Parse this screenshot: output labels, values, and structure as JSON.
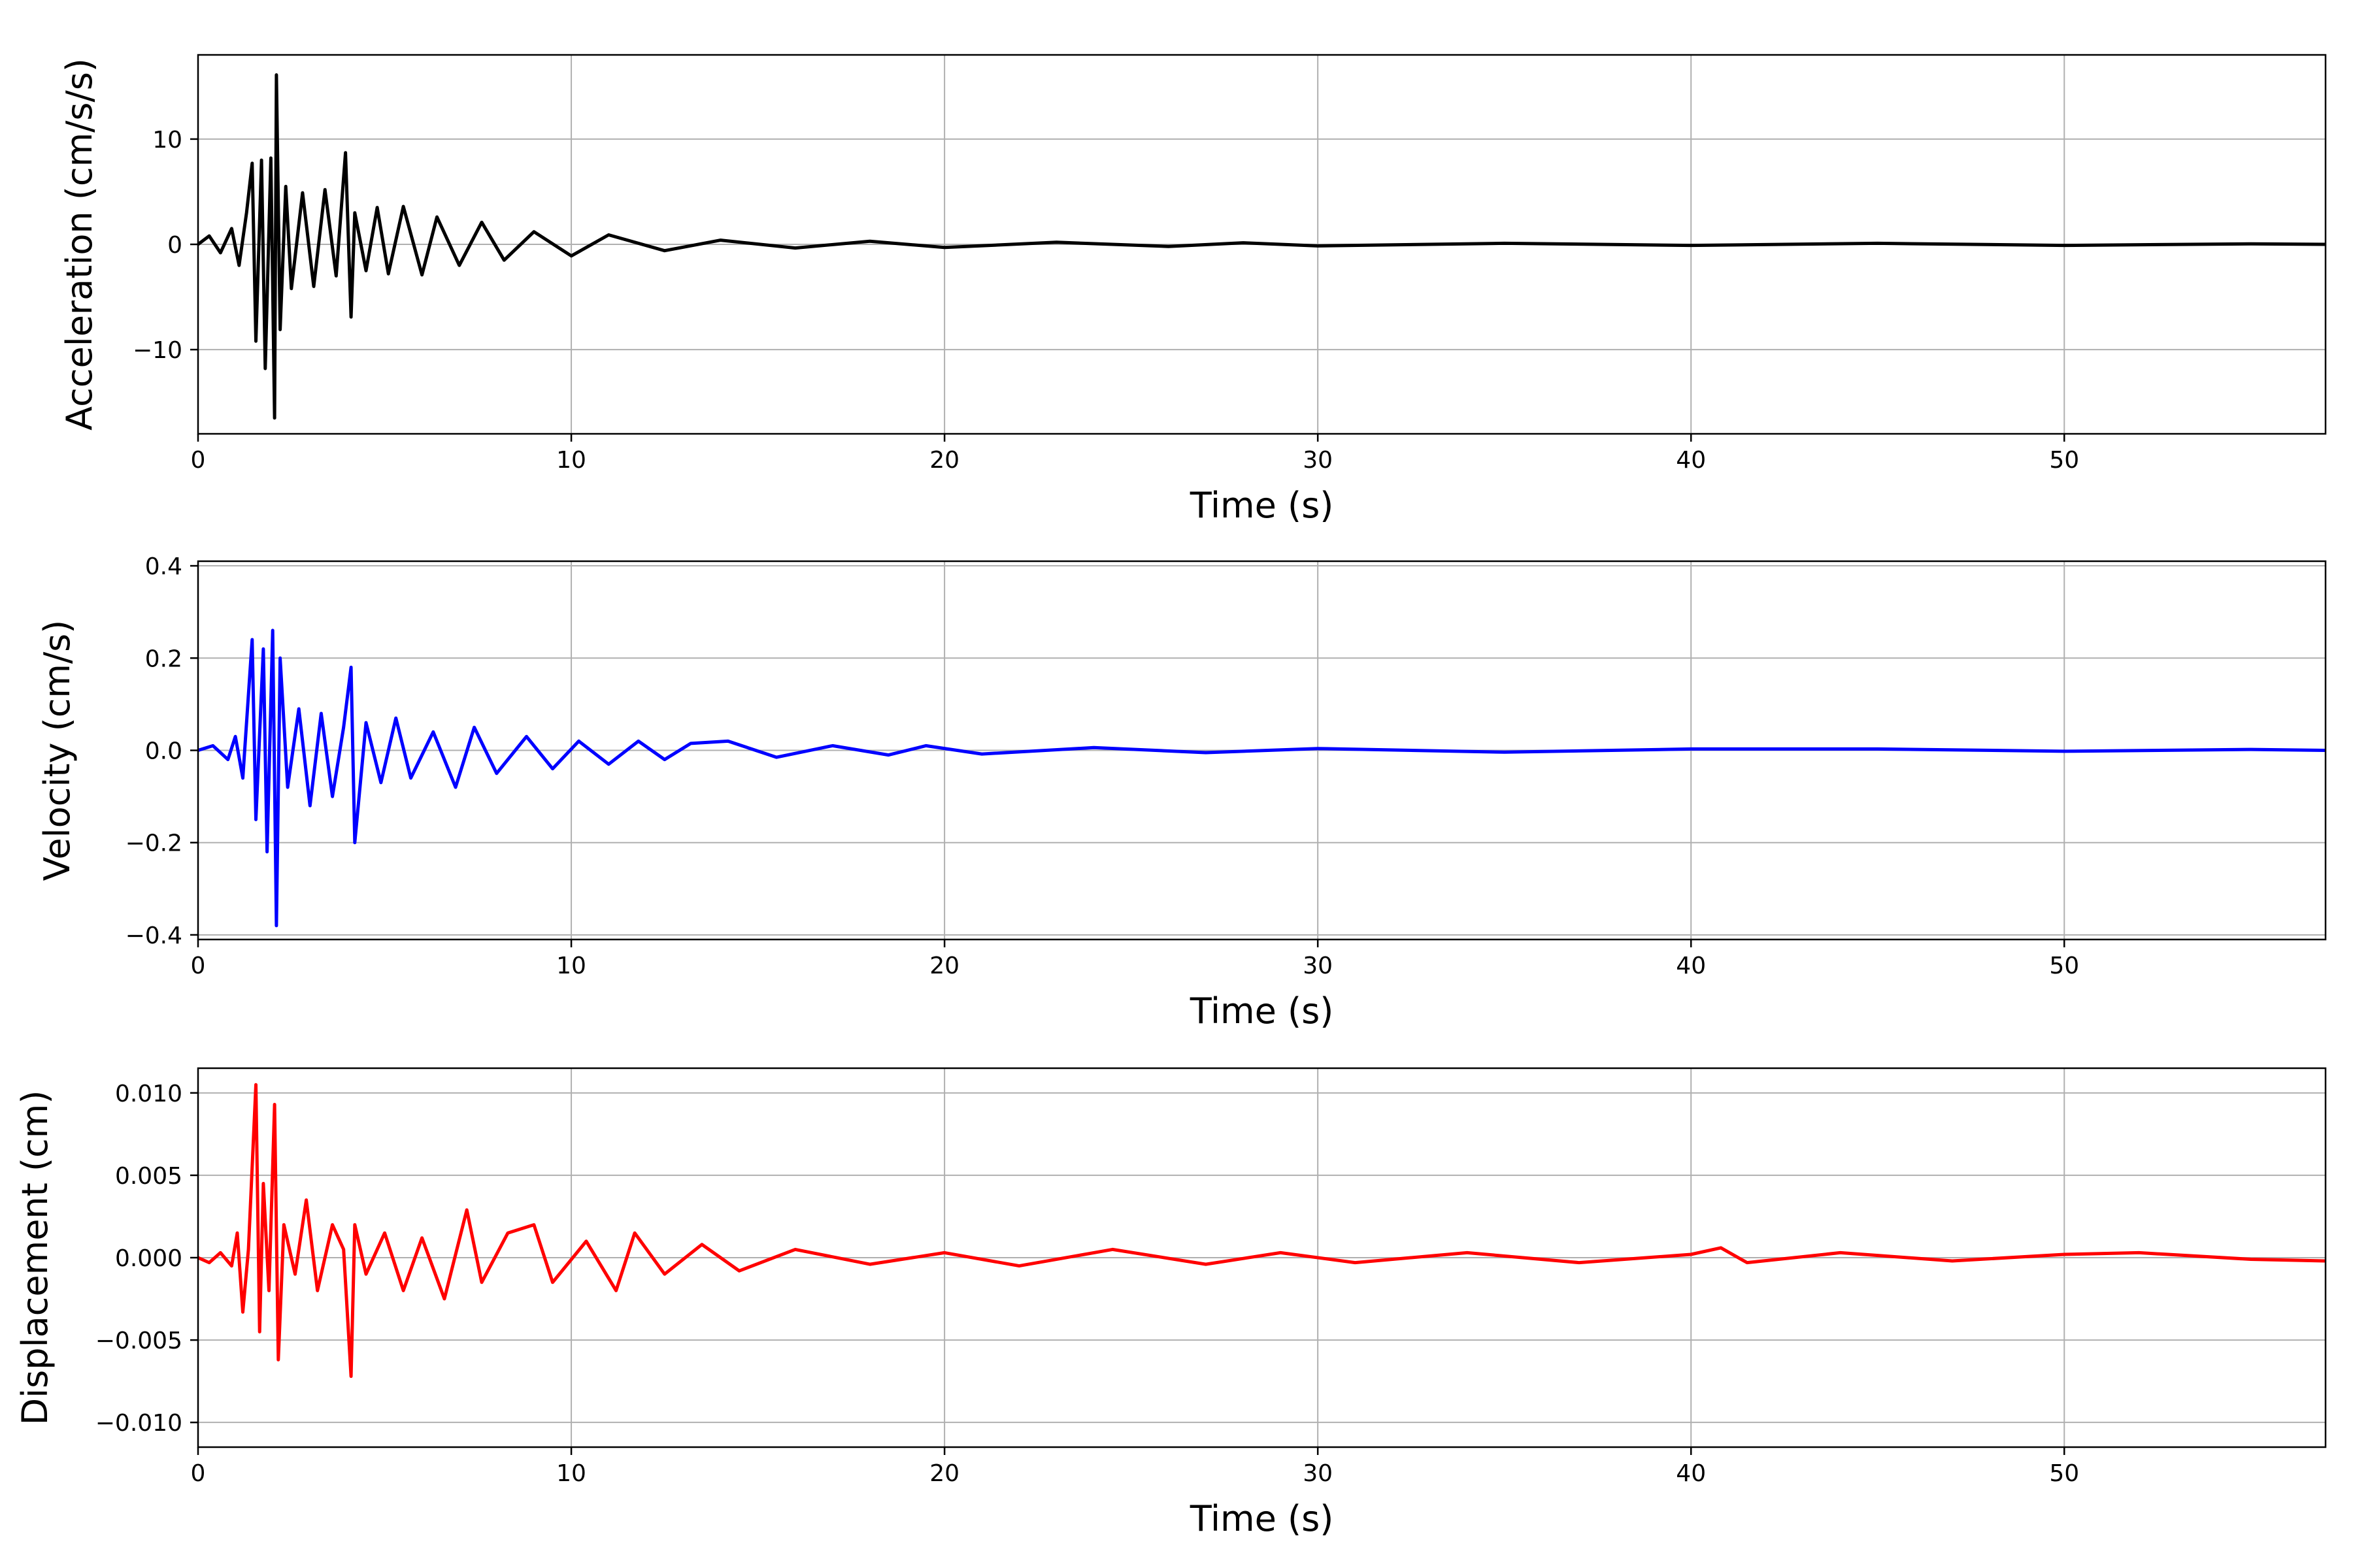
{
  "chart_data": [
    {
      "type": "line",
      "xlabel": "Time (s)",
      "ylabel": "Acceleration (cm/s/s)",
      "xlim": [
        0,
        57
      ],
      "ylim": [
        -18,
        18
      ],
      "xticks": [
        0,
        10,
        20,
        30,
        40,
        50
      ],
      "xtick_labels": [
        "0",
        "10",
        "20",
        "30",
        "40",
        "50"
      ],
      "yticks": [
        -10,
        0,
        10
      ],
      "ytick_labels": [
        "−10",
        "0",
        "10"
      ],
      "grid": true,
      "color": "#000000",
      "series": [
        {
          "x": [
            0,
            0.3,
            0.6,
            0.9,
            1.1,
            1.3,
            1.45,
            1.55,
            1.7,
            1.8,
            1.95,
            2.05,
            2.1,
            2.2,
            2.35,
            2.5,
            2.8,
            3.1,
            3.4,
            3.7,
            3.95,
            4.1,
            4.2,
            4.5,
            4.8,
            5.1,
            5.5,
            6.0,
            6.4,
            7.0,
            7.6,
            8.2,
            9.0,
            10.0,
            11.0,
            12.5,
            14.0,
            16.0,
            18.0,
            20.0,
            23.0,
            26.0,
            28.0,
            30.0,
            35.0,
            40.0,
            45.0,
            50.0,
            55.0,
            57.0
          ],
          "y": [
            0,
            0.8,
            -0.8,
            1.5,
            -2,
            3,
            7.7,
            -9.2,
            8,
            -11.8,
            8.2,
            -16.5,
            16.1,
            -8.1,
            5.5,
            -4.2,
            4.9,
            -4,
            5.2,
            -3,
            8.7,
            -6.9,
            3,
            -2.5,
            3.5,
            -2.8,
            3.6,
            -2.9,
            2.6,
            -2,
            2.1,
            -1.5,
            1.2,
            -1.1,
            0.9,
            -0.6,
            0.4,
            -0.35,
            0.3,
            -0.3,
            0.2,
            -0.2,
            0.15,
            -0.15,
            0.1,
            -0.1,
            0.1,
            -0.1,
            0.05,
            0
          ]
        }
      ]
    },
    {
      "type": "line",
      "xlabel": "Time (s)",
      "ylabel": "Velocity (cm/s)",
      "xlim": [
        0,
        57
      ],
      "ylim": [
        -0.41,
        0.41
      ],
      "xticks": [
        0,
        10,
        20,
        30,
        40,
        50
      ],
      "xtick_labels": [
        "0",
        "10",
        "20",
        "30",
        "40",
        "50"
      ],
      "yticks": [
        -0.4,
        -0.2,
        0.0,
        0.2,
        0.4
      ],
      "ytick_labels": [
        "−0.4",
        "−0.2",
        "0.0",
        "0.2",
        "0.4"
      ],
      "grid": true,
      "color": "#0000ff",
      "series": [
        {
          "x": [
            0,
            0.4,
            0.8,
            1.0,
            1.2,
            1.45,
            1.55,
            1.75,
            1.85,
            2.0,
            2.1,
            2.2,
            2.4,
            2.7,
            3.0,
            3.3,
            3.6,
            3.9,
            4.1,
            4.2,
            4.5,
            4.9,
            5.3,
            5.7,
            6.3,
            6.9,
            7.4,
            8.0,
            8.8,
            9.5,
            10.2,
            11.0,
            11.8,
            12.5,
            13.2,
            14.2,
            15.5,
            17.0,
            18.5,
            19.5,
            21.0,
            24.0,
            27.0,
            30.0,
            35.0,
            40.0,
            45.0,
            50.0,
            55.0,
            57.0
          ],
          "y": [
            0,
            0.01,
            -0.02,
            0.03,
            -0.06,
            0.24,
            -0.15,
            0.22,
            -0.22,
            0.26,
            -0.38,
            0.2,
            -0.08,
            0.09,
            -0.12,
            0.08,
            -0.1,
            0.05,
            0.18,
            -0.2,
            0.06,
            -0.07,
            0.07,
            -0.06,
            0.04,
            -0.08,
            0.05,
            -0.05,
            0.03,
            -0.04,
            0.02,
            -0.03,
            0.02,
            -0.02,
            0.015,
            0.02,
            -0.015,
            0.01,
            -0.01,
            0.01,
            -0.008,
            0.006,
            -0.005,
            0.004,
            -0.004,
            0.003,
            0.003,
            -0.002,
            0.002,
            0
          ]
        }
      ]
    },
    {
      "type": "line",
      "xlabel": "Time (s)",
      "ylabel": "Displacement (cm)",
      "xlim": [
        0,
        57
      ],
      "ylim": [
        -0.0115,
        0.0115
      ],
      "xticks": [
        0,
        10,
        20,
        30,
        40,
        50
      ],
      "xtick_labels": [
        "0",
        "10",
        "20",
        "30",
        "40",
        "50"
      ],
      "yticks": [
        -0.01,
        -0.005,
        0.0,
        0.005,
        0.01
      ],
      "ytick_labels": [
        "−0.010",
        "−0.005",
        "0.000",
        "0.005",
        "0.010"
      ],
      "grid": true,
      "color": "#ff0000",
      "series": [
        {
          "x": [
            0,
            0.3,
            0.6,
            0.9,
            1.05,
            1.2,
            1.35,
            1.55,
            1.65,
            1.75,
            1.9,
            2.05,
            2.15,
            2.3,
            2.6,
            2.9,
            3.2,
            3.6,
            3.9,
            4.1,
            4.2,
            4.5,
            5.0,
            5.5,
            6.0,
            6.6,
            7.2,
            7.6,
            8.3,
            9.0,
            9.5,
            10.4,
            11.2,
            11.7,
            12.5,
            13.5,
            14.5,
            16.0,
            18.0,
            20.0,
            22.0,
            24.5,
            27.0,
            29.0,
            31.0,
            34.0,
            37.0,
            40.0,
            40.8,
            41.5,
            44.0,
            47.0,
            50.0,
            52.0,
            55.0,
            57.0
          ],
          "y": [
            0,
            -0.0003,
            0.0003,
            -0.0005,
            0.0015,
            -0.0033,
            0.0005,
            0.0105,
            -0.0045,
            0.0045,
            -0.002,
            0.0093,
            -0.0062,
            0.002,
            -0.001,
            0.0035,
            -0.002,
            0.002,
            0.0005,
            -0.0072,
            0.002,
            -0.001,
            0.0015,
            -0.002,
            0.0012,
            -0.0025,
            0.0029,
            -0.0015,
            0.0015,
            0.002,
            -0.0015,
            0.001,
            -0.002,
            0.0015,
            -0.001,
            0.0008,
            -0.0008,
            0.0005,
            -0.0004,
            0.0003,
            -0.0005,
            0.0005,
            -0.0004,
            0.0003,
            -0.0003,
            0.0003,
            -0.0003,
            0.0002,
            0.0006,
            -0.0003,
            0.0003,
            -0.0002,
            0.0002,
            0.0003,
            -0.0001,
            -0.0002
          ]
        }
      ]
    }
  ]
}
